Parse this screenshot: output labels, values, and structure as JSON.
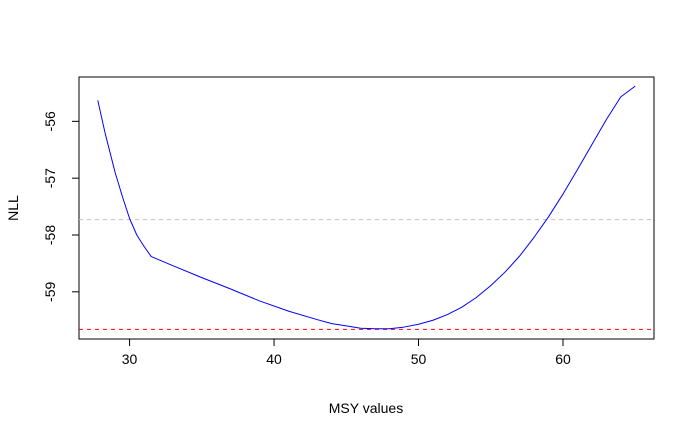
{
  "chart_data": {
    "type": "line",
    "title": "",
    "xlabel": "MSY values",
    "ylabel": "NLL",
    "xlim": [
      26.5,
      66.3
    ],
    "ylim": [
      -59.83,
      -55.22
    ],
    "x_ticks": [
      30,
      40,
      50,
      60
    ],
    "x_tick_labels": [
      "30",
      "40",
      "50",
      "60"
    ],
    "y_ticks": [
      -56,
      -57,
      -58,
      -59
    ],
    "y_tick_labels": [
      "-56",
      "-57",
      "-58",
      "-59"
    ],
    "grid": false,
    "series": [
      {
        "color": "#0000ff",
        "x": [
          27.8,
          28.3,
          29.0,
          29.5,
          30.0,
          30.5,
          31.0,
          31.5,
          33.0,
          35.0,
          37.0,
          39.0,
          41.0,
          43.0,
          44.0,
          45.0,
          46.0,
          47.0,
          48.0,
          49.0,
          50.0,
          51.0,
          52.0,
          53.0,
          54.0,
          55.0,
          56.0,
          57.0,
          58.0,
          59.0,
          60.0,
          61.0,
          62.0,
          63.0,
          64.0,
          65.0
        ],
        "y": [
          -55.63,
          -56.2,
          -56.9,
          -57.32,
          -57.71,
          -58.0,
          -58.2,
          -58.38,
          -58.54,
          -58.75,
          -58.95,
          -59.16,
          -59.34,
          -59.49,
          -59.56,
          -59.6,
          -59.64,
          -59.65,
          -59.65,
          -59.62,
          -59.57,
          -59.5,
          -59.4,
          -59.27,
          -59.1,
          -58.89,
          -58.65,
          -58.37,
          -58.04,
          -57.68,
          -57.28,
          -56.85,
          -56.41,
          -55.97,
          -55.57,
          -55.38
        ]
      }
    ],
    "hlines": [
      {
        "y": -57.73,
        "color": "#bebebe",
        "style": "dashed"
      },
      {
        "y": -59.66,
        "color": "#ff0000",
        "style": "dashed"
      }
    ]
  }
}
